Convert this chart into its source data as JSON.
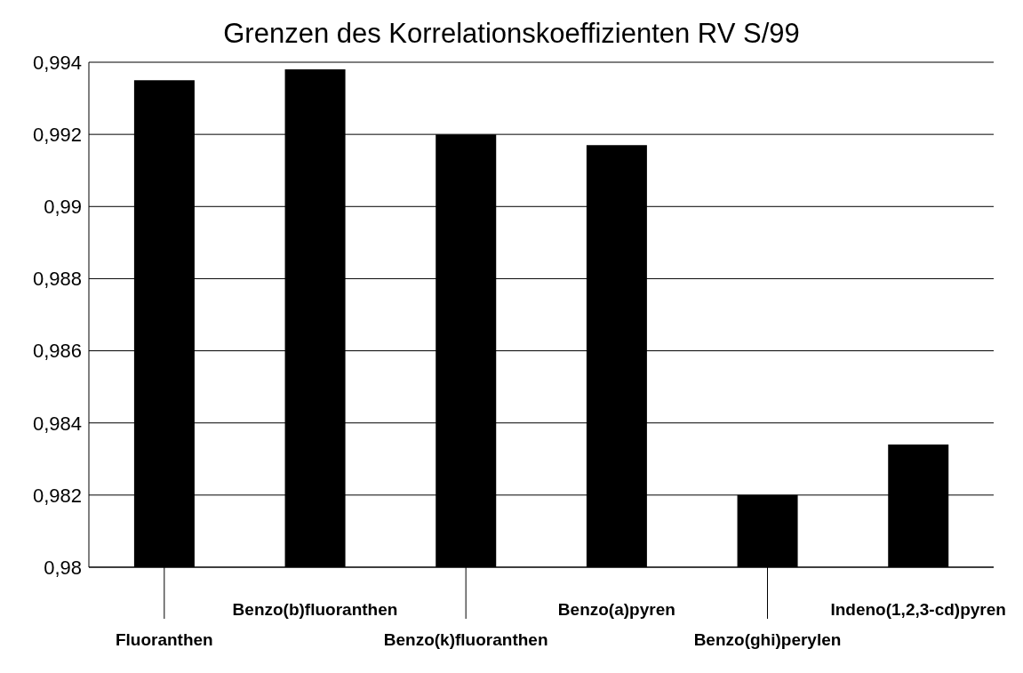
{
  "chart_data": {
    "type": "bar",
    "title": "Grenzen des Korrelationskoeffizienten RV S/99",
    "categories": [
      "Fluoranthen",
      "Benzo(b)fluoranthen",
      "Benzo(k)fluoranthen",
      "Benzo(a)pyren",
      "Benzo(ghi)perylen",
      "Indeno(1,2,3-cd)pyren"
    ],
    "values": [
      0.9935,
      0.9938,
      0.992,
      0.9917,
      0.982,
      0.9834
    ],
    "color": "#000000",
    "ylim": [
      0.98,
      0.994
    ],
    "yticks": [
      {
        "value": 0.98,
        "label": "0,98"
      },
      {
        "value": 0.982,
        "label": "0,982"
      },
      {
        "value": 0.984,
        "label": "0,984"
      },
      {
        "value": 0.986,
        "label": "0,986"
      },
      {
        "value": 0.988,
        "label": "0,988"
      },
      {
        "value": 0.99,
        "label": "0,99"
      },
      {
        "value": 0.992,
        "label": "0,992"
      },
      {
        "value": 0.994,
        "label": "0,994"
      }
    ],
    "grid": "y"
  }
}
